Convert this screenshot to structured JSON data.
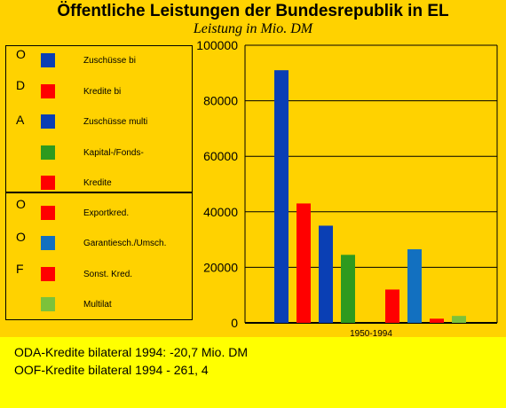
{
  "title": "Öffentliche Leistungen der Bundesrepublik in EL",
  "subtitle": "Leistung in Mio. DM",
  "legend": {
    "groups": [
      {
        "letters": [
          "O",
          "D",
          "A"
        ]
      },
      {
        "letters": [
          "O",
          "O",
          "F"
        ]
      }
    ],
    "items": [
      {
        "label": "Zuschüsse bi",
        "color": "#0A3FB4"
      },
      {
        "label": "Kredite bi",
        "color": "#FF0000"
      },
      {
        "label": "Zuschüsse multi",
        "color": "#0A3FB4"
      },
      {
        "label": "Kapital-/Fonds-",
        "color": "#2E9A1E"
      },
      {
        "label": "Kredite",
        "color": "#FF0000"
      },
      {
        "label": "Exportkred.",
        "color": "#FF0000"
      },
      {
        "label": "Garantiesch./Umsch.",
        "color": "#1270C0"
      },
      {
        "label": "Sonst. Kred.",
        "color": "#FF0000"
      },
      {
        "label": "Multilat",
        "color": "#7CC23A"
      }
    ]
  },
  "chart_data": {
    "type": "bar",
    "categories": [
      "1950-1994"
    ],
    "xlabel": "1950-1994",
    "ylim": [
      0,
      100000
    ],
    "yticks": [
      "0",
      "20000",
      "40000",
      "60000",
      "80000",
      "100000"
    ],
    "grid": true,
    "series": [
      {
        "name": "Zuschüsse bi",
        "value": 91000,
        "color": "#0A3FB4"
      },
      {
        "name": "Kredite bi",
        "value": 43000,
        "color": "#FF0000"
      },
      {
        "name": "Zuschüsse multi",
        "value": 35000,
        "color": "#0A3FB4"
      },
      {
        "name": "Kapital-/Fonds-Kredite",
        "value": 24500,
        "color": "#2E9A1E"
      },
      {
        "name": "Exportkred.",
        "value": 0,
        "color": "#FF0000"
      },
      {
        "name": "Sonst. Kred. (Export)",
        "value": 12000,
        "color": "#FF0000"
      },
      {
        "name": "Garantiesch./Umsch.",
        "value": 26500,
        "color": "#1270C0"
      },
      {
        "name": "Sonst. Kred.",
        "value": 1500,
        "color": "#FF0000"
      },
      {
        "name": "Multilat",
        "value": 2500,
        "color": "#7CC23A"
      }
    ]
  },
  "notes": [
    "ODA-Kredite bilateral 1994: -20,7 Mio. DM",
    "OOF-Kredite bilateral 1994 - 261, 4"
  ]
}
